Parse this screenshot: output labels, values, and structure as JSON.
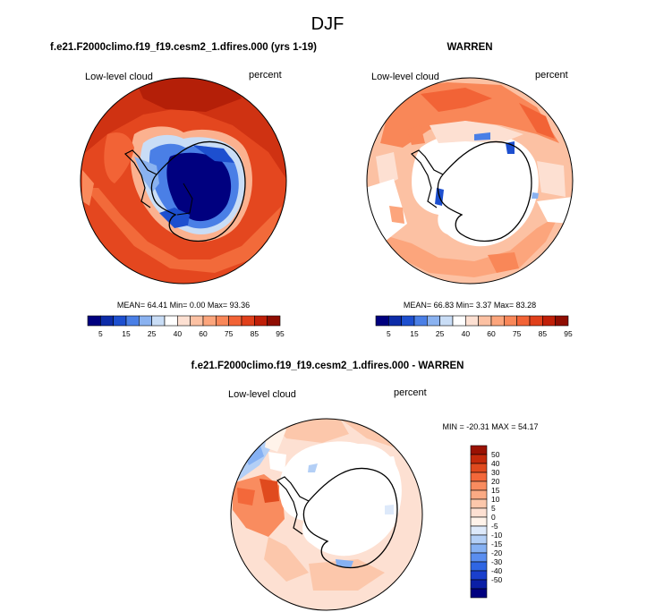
{
  "figure": {
    "season": "DJF",
    "variable": "Low-level cloud",
    "units": "percent"
  },
  "colors": {
    "seq": [
      "#00007f",
      "#0d2ca8",
      "#1d4fcf",
      "#4a7fe6",
      "#8ab2f0",
      "#c9ddf6",
      "#ffffff",
      "#fde0d2",
      "#fcc1a3",
      "#fca57c",
      "#f98758",
      "#f26336",
      "#e0401b",
      "#c01f08",
      "#8f0d02"
    ],
    "div": [
      "#00007f",
      "#0b1fa6",
      "#1a3fcc",
      "#2f66e3",
      "#5a8ef0",
      "#86b1f3",
      "#b3cff6",
      "#dde9fa",
      "#fff3ea",
      "#fde0d2",
      "#fcc7ab",
      "#fbaa84",
      "#f98c5f",
      "#f3683a",
      "#e04a1e",
      "#c42a0b",
      "#9a1203"
    ]
  },
  "chart_data": [
    {
      "type": "polar-map",
      "title": "f.e21.F2000climo.f19_f19.cesm2_1.dfires.000 (yrs 1-19)",
      "left_label": "Low-level cloud",
      "right_label": "percent",
      "stats": {
        "mean": "64.41",
        "min": "0.00",
        "max": "93.36"
      },
      "stats_text": "MEAN= 64.41 Min= 0.00 Max= 93.36",
      "colorbar": {
        "orientation": "horizontal",
        "tick_labels": [
          "5",
          "15",
          "25",
          "40",
          "60",
          "75",
          "85",
          "95"
        ]
      }
    },
    {
      "type": "polar-map",
      "title": "WARREN",
      "left_label": "Low-level cloud",
      "right_label": "percent",
      "stats": {
        "mean": "66.83",
        "min": "3.37",
        "max": "83.28"
      },
      "stats_text": "MEAN= 66.83 Min= 3.37 Max= 83.28",
      "colorbar": {
        "orientation": "horizontal",
        "tick_labels": [
          "5",
          "15",
          "25",
          "40",
          "60",
          "75",
          "85",
          "95"
        ]
      }
    },
    {
      "type": "polar-map-difference",
      "title": "f.e21.F2000climo.f19_f19.cesm2_1.dfires.000 - WARREN",
      "left_label": "Low-level cloud",
      "right_label": "percent",
      "stats": {
        "min": "-20.31",
        "max": "54.17"
      },
      "stats_text": "MIN = -20.31 MAX = 54.17",
      "colorbar": {
        "orientation": "vertical",
        "tick_labels": [
          "50",
          "40",
          "30",
          "20",
          "15",
          "10",
          "5",
          "0",
          "-5",
          "-10",
          "-15",
          "-20",
          "-30",
          "-40",
          "-50"
        ]
      }
    }
  ]
}
